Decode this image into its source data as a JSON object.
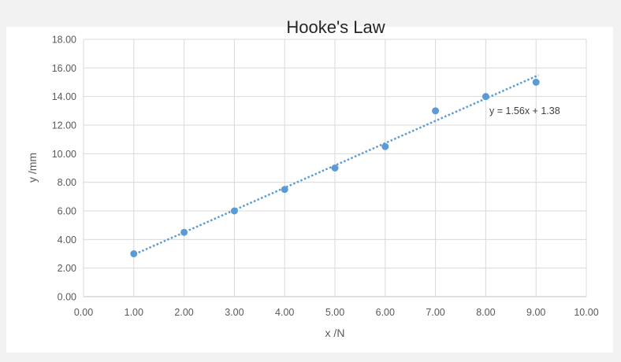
{
  "chart_data": {
    "type": "scatter",
    "title": "Hooke's Law",
    "xlabel": "x /N",
    "ylabel": "y /mm",
    "xlim": [
      0,
      10
    ],
    "ylim": [
      0,
      18
    ],
    "x_ticks": [
      "0.00",
      "1.00",
      "2.00",
      "3.00",
      "4.00",
      "5.00",
      "6.00",
      "7.00",
      "8.00",
      "9.00",
      "10.00"
    ],
    "y_ticks": [
      "0.00",
      "2.00",
      "4.00",
      "6.00",
      "8.00",
      "10.00",
      "12.00",
      "14.00",
      "16.00",
      "18.00"
    ],
    "grid": true,
    "marker_color": "#5b9bd5",
    "trendline_color": "#5b9bd5",
    "series": [
      {
        "x": [
          1,
          2,
          3,
          4,
          5,
          6,
          7,
          8,
          9
        ],
        "y": [
          3.0,
          4.5,
          6.0,
          7.5,
          9.0,
          10.5,
          13.0,
          14.0,
          15.0
        ]
      }
    ],
    "trendline": {
      "type": "linear",
      "slope": 1.56,
      "intercept": 1.38,
      "x_range": [
        1,
        9
      ],
      "style": "dotted",
      "equation_label": "y = 1.56x + 1.38"
    }
  }
}
